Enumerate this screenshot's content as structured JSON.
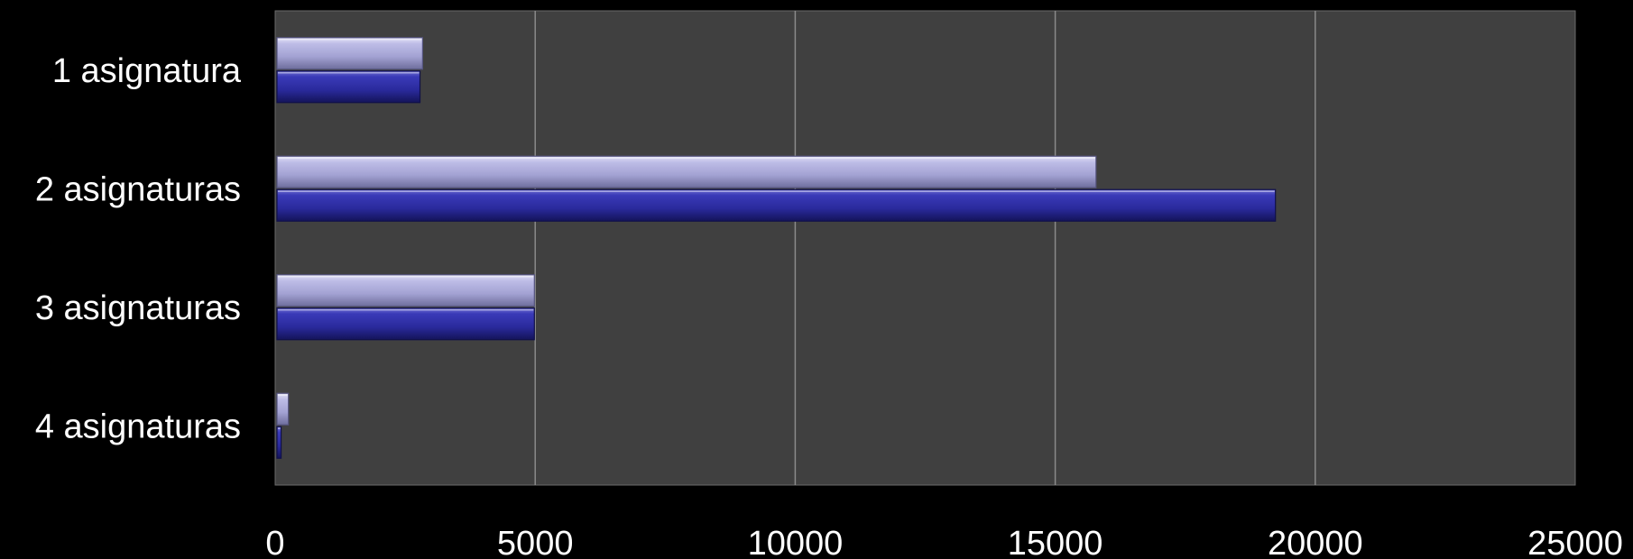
{
  "chart_data": {
    "type": "bar",
    "orientation": "horizontal",
    "title": "",
    "xlabel": "",
    "ylabel": "",
    "categories": [
      "1 asignatura",
      "2 asignaturas",
      "3 asignaturas",
      "4 asignaturas"
    ],
    "series": [
      {
        "values": [
          2750,
          19200,
          4950,
          80
        ],
        "color": "#2b2b9a"
      },
      {
        "values": [
          2800,
          15750,
          4950,
          220
        ],
        "color": "#a7a6d6"
      }
    ],
    "xlim": [
      0,
      25000
    ],
    "xticks": [
      "0",
      "5000",
      "10000",
      "15000",
      "20000",
      "25000"
    ],
    "grid": true,
    "legend": "none",
    "plot_background": "#404040",
    "page_background": "#000000"
  }
}
